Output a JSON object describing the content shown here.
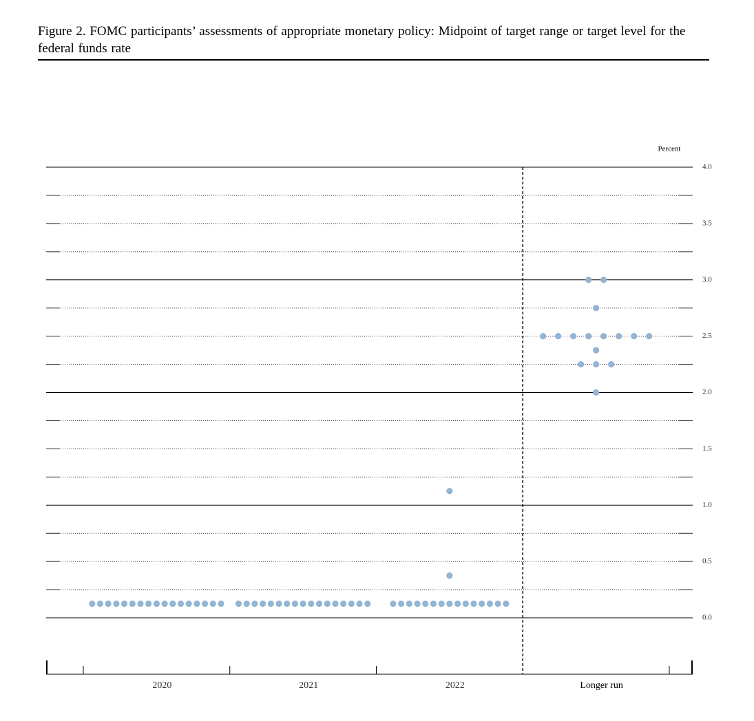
{
  "chart_data": {
    "type": "dot",
    "title": "Figure 2.  FOMC participants’ assessments of appropriate monetary policy: Midpoint of target range or target level for the federal funds rate",
    "y_label": "Percent",
    "categories": [
      "2020",
      "2021",
      "2022",
      "Longer run"
    ],
    "values": [
      [
        0.125,
        0.125,
        0.125,
        0.125,
        0.125,
        0.125,
        0.125,
        0.125,
        0.125,
        0.125,
        0.125,
        0.125,
        0.125,
        0.125,
        0.125,
        0.125,
        0.125
      ],
      [
        0.125,
        0.125,
        0.125,
        0.125,
        0.125,
        0.125,
        0.125,
        0.125,
        0.125,
        0.125,
        0.125,
        0.125,
        0.125,
        0.125,
        0.125,
        0.125,
        0.125
      ],
      [
        0.125,
        0.125,
        0.125,
        0.125,
        0.125,
        0.125,
        0.125,
        0.125,
        0.125,
        0.125,
        0.125,
        0.125,
        0.125,
        0.125,
        0.125,
        0.375,
        1.125
      ],
      [
        3.0,
        3.0,
        2.75,
        2.5,
        2.5,
        2.5,
        2.5,
        2.5,
        2.5,
        2.5,
        2.5,
        2.375,
        2.25,
        2.25,
        2.25,
        2.0
      ]
    ],
    "color": "#94b4d4",
    "ylim": [
      0,
      4
    ],
    "yticks": [
      {
        "value": 0,
        "label": "0.0"
      },
      {
        "value": 0.5,
        "label": "0.5"
      },
      {
        "value": 1,
        "label": "1.0"
      },
      {
        "value": 1.5,
        "label": "1.5"
      },
      {
        "value": 2,
        "label": "2.0"
      },
      {
        "value": 2.5,
        "label": "2.5"
      },
      {
        "value": 3,
        "label": "3.0"
      },
      {
        "value": 3.5,
        "label": "3.5"
      },
      {
        "value": 4,
        "label": "4.0"
      }
    ],
    "minor_yticks": [
      0.25,
      0.5,
      0.75,
      1.25,
      1.5,
      1.75,
      2.25,
      2.5,
      2.75,
      3.25,
      3.5,
      3.75
    ],
    "major_yticks": [
      0,
      1,
      2,
      3,
      4
    ]
  }
}
